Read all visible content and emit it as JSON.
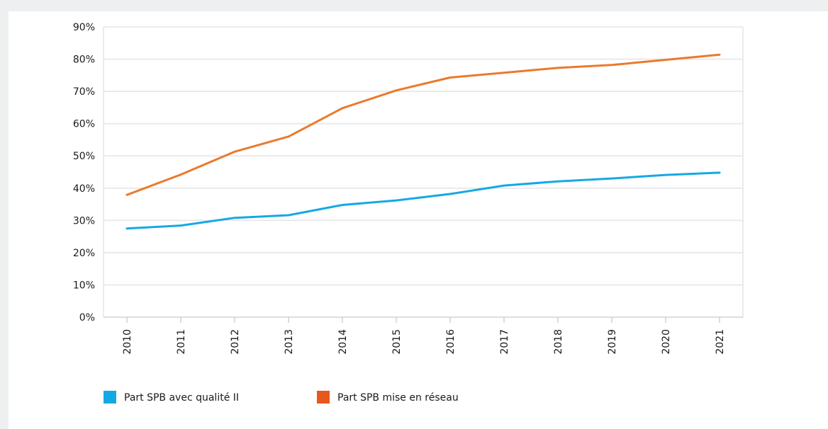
{
  "chart_data": {
    "type": "line",
    "x": [
      "2010",
      "2011",
      "2012",
      "2013",
      "2014",
      "2015",
      "2016",
      "2017",
      "2018",
      "2019",
      "2020",
      "2021"
    ],
    "series": [
      {
        "name": "Part SPB avec qualité II",
        "color": "#15a9e3",
        "values": [
          27.5,
          28.4,
          30.8,
          31.6,
          34.8,
          36.2,
          38.2,
          40.8,
          42.1,
          43.0,
          44.1,
          44.8
        ]
      },
      {
        "name": "Part SPB mise en réseau",
        "color": "#ea7a2c",
        "values": [
          37.9,
          44.2,
          51.3,
          56.0,
          64.8,
          70.3,
          74.3,
          75.8,
          77.3,
          78.2,
          79.8,
          81.4
        ]
      }
    ],
    "ylim": [
      0,
      90
    ],
    "y_ticks": [
      "0%",
      "10%",
      "20%",
      "30%",
      "40%",
      "50%",
      "60%",
      "70%",
      "80%",
      "90%"
    ],
    "grid": true,
    "legend_position": "bottom-left",
    "legend_swatch_colors": [
      "#15a9e3",
      "#e8581a"
    ],
    "title": "",
    "xlabel": "",
    "ylabel": ""
  }
}
